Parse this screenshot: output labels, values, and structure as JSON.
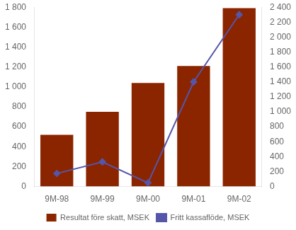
{
  "chart_data": {
    "type": "bar",
    "categories": [
      "9M-98",
      "9M-99",
      "9M-00",
      "9M-01",
      "9M-02"
    ],
    "series": [
      {
        "name": "Resultat före skatt, MSEK",
        "type": "bar",
        "color": "#8B2500",
        "axis": "y",
        "values": [
          520,
          750,
          1040,
          1210,
          1790
        ]
      },
      {
        "name": "Fritt kassaflöde, MSEK",
        "type": "line",
        "color": "#5555AA",
        "axis": "y2",
        "marker": "diamond",
        "line_style": "solid",
        "values": [
          175,
          330,
          50,
          1400,
          2300
        ]
      }
    ],
    "ylim": [
      0,
      1800
    ],
    "yticks": [
      0,
      200,
      400,
      600,
      800,
      {
        "value": 1000,
        "label": "1 000"
      },
      {
        "value": 1200,
        "label": "1 200"
      },
      {
        "value": 1400,
        "label": "1 400"
      },
      {
        "value": 1600,
        "label": "1 600"
      },
      {
        "value": 1800,
        "label": "1 800"
      }
    ],
    "y2lim": [
      0,
      2400
    ],
    "y2ticks": [
      0,
      200,
      400,
      600,
      800,
      {
        "value": 1000,
        "label": "1 000"
      },
      {
        "value": 1200,
        "label": "1 200"
      },
      {
        "value": 1400,
        "label": "1 400"
      },
      {
        "value": 1600,
        "label": "1 600"
      },
      {
        "value": 1800,
        "label": "1 800"
      },
      {
        "value": 2000,
        "label": "2 000"
      },
      {
        "value": 2200,
        "label": "2 200"
      },
      {
        "value": 2400,
        "label": "2 400"
      }
    ],
    "grid": false,
    "legend": "bottom"
  }
}
